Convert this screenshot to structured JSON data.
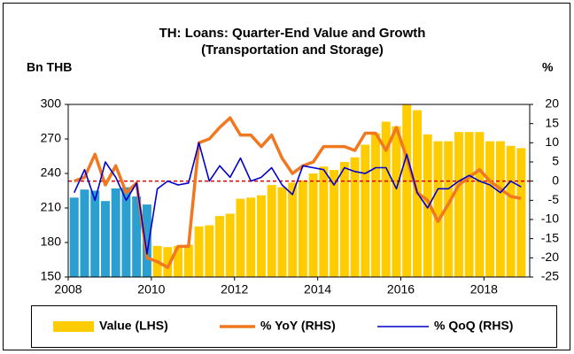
{
  "chart_data": {
    "type": "bar-line",
    "title": "TH: Loans: Quarter-End Value and Growth",
    "subtitle": "(Transportation and Storage)",
    "y_label": "Bn THB",
    "y2_label": "%",
    "x": [
      2008.25,
      2008.5,
      2008.75,
      2009,
      2009.25,
      2009.5,
      2009.75,
      2010,
      2010.25,
      2010.5,
      2010.75,
      2011,
      2011.25,
      2011.5,
      2011.75,
      2012,
      2012.25,
      2012.5,
      2012.75,
      2013,
      2013.25,
      2013.5,
      2013.75,
      2014,
      2014.25,
      2014.5,
      2014.75,
      2015,
      2015.25,
      2015.5,
      2015.75,
      2016,
      2016.25,
      2016.5,
      2016.75,
      2017,
      2017.25,
      2017.5,
      2017.75,
      2018,
      2018.25,
      2018.5,
      2018.75,
      2019
    ],
    "xlim": [
      2008,
      2019.1
    ],
    "xticks": [
      2008,
      2010,
      2012,
      2014,
      2016,
      2018
    ],
    "ylim": [
      150,
      300
    ],
    "yticks": [
      150,
      180,
      210,
      240,
      270,
      300
    ],
    "y2lim": [
      -25,
      20
    ],
    "y2ticks": [
      -25,
      -20,
      -15,
      -10,
      -5,
      0,
      5,
      10,
      15,
      20
    ],
    "reference_line": {
      "axis": "y2",
      "value": 0,
      "color": "#e00000"
    },
    "series": [
      {
        "name": "Value (LHS)",
        "type": "bar",
        "color": "#ffcc00",
        "bar_colors": [
          "#2a9fd0",
          "#2a9fd0",
          "#2a9fd0",
          "#2a9fd0",
          "#2a9fd0",
          "#2a9fd0",
          "#2a9fd0",
          "#2a9fd0",
          "#ffcc00",
          "#ffcc00",
          "#ffcc00",
          "#ffcc00",
          "#ffcc00",
          "#ffcc00",
          "#ffcc00",
          "#ffcc00",
          "#ffcc00",
          "#ffcc00",
          "#ffcc00",
          "#ffcc00",
          "#ffcc00",
          "#ffcc00",
          "#ffcc00",
          "#ffcc00",
          "#ffcc00",
          "#ffcc00",
          "#ffcc00",
          "#ffcc00",
          "#ffcc00",
          "#ffcc00",
          "#ffcc00",
          "#ffcc00",
          "#ffcc00",
          "#ffcc00",
          "#ffcc00",
          "#ffcc00",
          "#ffcc00",
          "#ffcc00",
          "#ffcc00",
          "#ffcc00",
          "#ffcc00",
          "#ffcc00",
          "#ffcc00",
          "#ffcc00"
        ],
        "values": [
          219,
          226,
          225,
          216,
          227,
          228,
          220,
          213,
          177,
          176,
          177,
          178,
          194,
          195,
          203,
          205,
          218,
          219,
          221,
          230,
          228,
          232,
          234,
          240,
          246,
          243,
          250,
          254,
          265,
          275,
          285,
          281,
          300,
          295,
          274,
          268,
          268,
          276,
          276,
          276,
          268,
          268,
          264,
          262
        ]
      },
      {
        "name": "% YoY (RHS)",
        "type": "line",
        "axis": "y2",
        "color": "#f07820",
        "values": [
          0,
          1,
          7,
          -1,
          4,
          -3,
          -0.5,
          -20,
          -21,
          -22.5,
          -17,
          -17,
          10,
          11,
          14,
          16.5,
          12,
          12,
          9,
          12,
          6,
          2,
          4,
          5,
          9,
          9,
          9,
          8,
          12.5,
          12.5,
          8,
          14,
          6,
          -3,
          -5,
          -10.5,
          -6,
          -1,
          1,
          3,
          0,
          -2,
          -4,
          -4.5
        ]
      },
      {
        "name": "% QoQ (RHS)",
        "type": "line",
        "axis": "y2",
        "color": "#0000cc",
        "values": [
          -3,
          3,
          -5,
          5,
          1,
          -5,
          -0.5,
          -19,
          -2,
          0,
          -1,
          -0.5,
          10,
          0,
          4,
          1,
          6,
          0,
          1,
          3.5,
          -1,
          -3.5,
          4,
          3.5,
          3,
          -1,
          3.5,
          2.5,
          2,
          3.5,
          3.5,
          -2,
          7,
          -3,
          -7,
          -2,
          -2,
          0,
          1.5,
          0,
          -1,
          -3,
          0,
          -1.5
        ]
      }
    ]
  }
}
